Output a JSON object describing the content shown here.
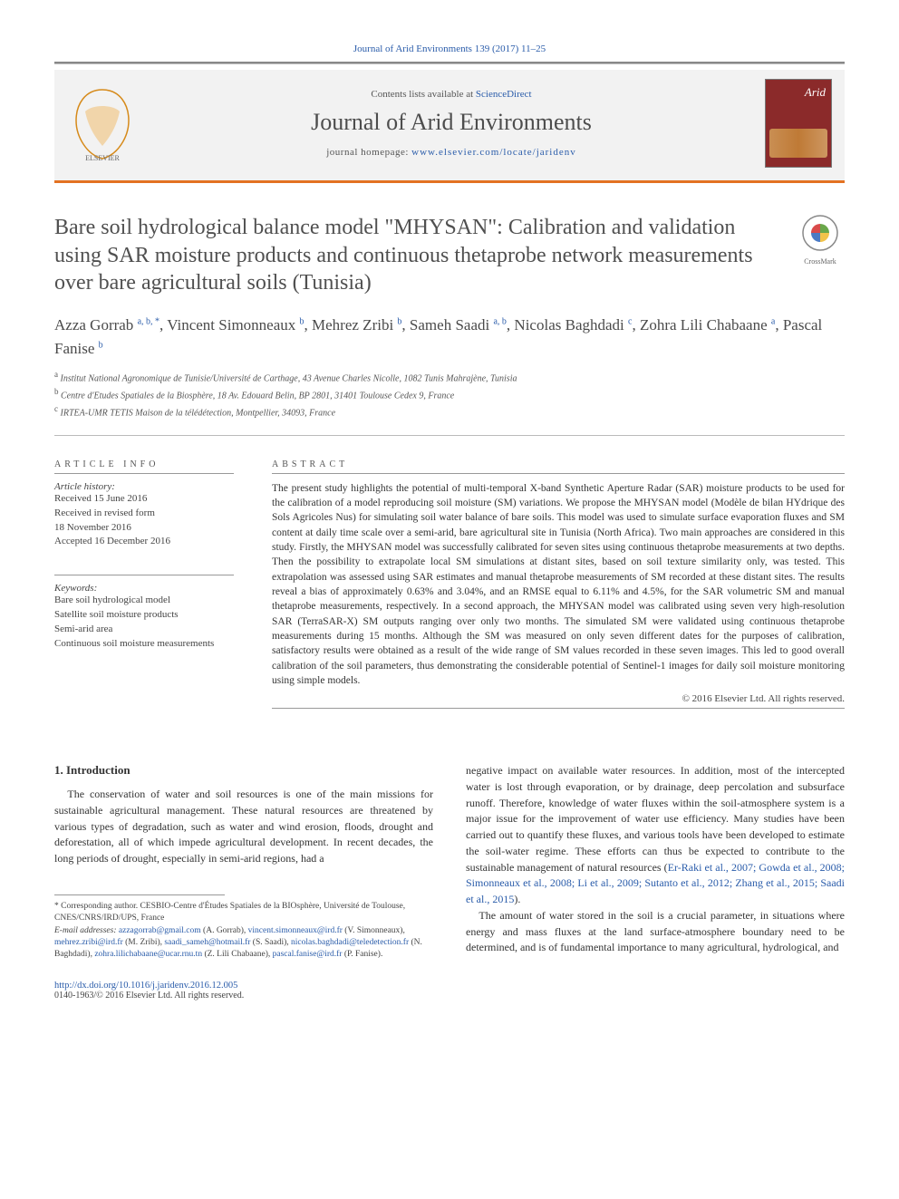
{
  "citation": "Journal of Arid Environments 139 (2017) 11–25",
  "header": {
    "contents_prefix": "Contents lists available at ",
    "contents_link": "ScienceDirect",
    "journal_name": "Journal of Arid Environments",
    "homepage_prefix": "journal homepage: ",
    "homepage_url": "www.elsevier.com/locate/jaridenv",
    "cover_title": "Arid"
  },
  "crossmark_label": "CrossMark",
  "title": "Bare soil hydrological balance model \"MHYSAN\": Calibration and validation using SAR moisture products and continuous thetaprobe network measurements over bare agricultural soils (Tunisia)",
  "authors": [
    {
      "name": "Azza Gorrab",
      "aff": "a, b, *"
    },
    {
      "name": "Vincent Simonneaux",
      "aff": "b"
    },
    {
      "name": "Mehrez Zribi",
      "aff": "b"
    },
    {
      "name": "Sameh Saadi",
      "aff": "a, b"
    },
    {
      "name": "Nicolas Baghdadi",
      "aff": "c"
    },
    {
      "name": "Zohra Lili Chabaane",
      "aff": "a"
    },
    {
      "name": "Pascal Fanise",
      "aff": "b"
    }
  ],
  "affiliations": [
    {
      "key": "a",
      "text": "Institut National Agronomique de Tunisie/Université de Carthage, 43 Avenue Charles Nicolle, 1082 Tunis Mahrajène, Tunisia"
    },
    {
      "key": "b",
      "text": "Centre d'Etudes Spatiales de la Biosphère, 18 Av. Edouard Belin, BP 2801, 31401 Toulouse Cedex 9, France"
    },
    {
      "key": "c",
      "text": "IRTEA-UMR TETIS Maison de la télédétection, Montpellier, 34093, France"
    }
  ],
  "info": {
    "header": "ARTICLE INFO",
    "history_label": "Article history:",
    "received": "Received 15 June 2016",
    "revised": "Received in revised form\n18 November 2016",
    "accepted": "Accepted 16 December 2016",
    "keywords_label": "Keywords:",
    "keywords": [
      "Bare soil hydrological model",
      "Satellite soil moisture products",
      "Semi-arid area",
      "Continuous soil moisture measurements"
    ]
  },
  "abstract": {
    "header": "ABSTRACT",
    "text": "The present study highlights the potential of multi-temporal X-band Synthetic Aperture Radar (SAR) moisture products to be used for the calibration of a model reproducing soil moisture (SM) variations. We propose the MHYSAN model (Modèle de bilan HYdrique des Sols Agricoles Nus) for simulating soil water balance of bare soils. This model was used to simulate surface evaporation fluxes and SM content at daily time scale over a semi-arid, bare agricultural site in Tunisia (North Africa). Two main approaches are considered in this study. Firstly, the MHYSAN model was successfully calibrated for seven sites using continuous thetaprobe measurements at two depths. Then the possibility to extrapolate local SM simulations at distant sites, based on soil texture similarity only, was tested. This extrapolation was assessed using SAR estimates and manual thetaprobe measurements of SM recorded at these distant sites. The results reveal a bias of approximately 0.63% and 3.04%, and an RMSE equal to 6.11% and 4.5%, for the SAR volumetric SM and manual thetaprobe measurements, respectively. In a second approach, the MHYSAN model was calibrated using seven very high-resolution SAR (TerraSAR-X) SM outputs ranging over only two months. The simulated SM were validated using continuous thetaprobe measurements during 15 months. Although the SM was measured on only seven different dates for the purposes of calibration, satisfactory results were obtained as a result of the wide range of SM values recorded in these seven images. This led to good overall calibration of the soil parameters, thus demonstrating the considerable potential of Sentinel-1 images for daily soil moisture monitoring using simple models.",
    "copyright": "© 2016 Elsevier Ltd. All rights reserved."
  },
  "section1": {
    "head": "1. Introduction",
    "p1": "The conservation of water and soil resources is one of the main missions for sustainable agricultural management. These natural resources are threatened by various types of degradation, such as water and wind erosion, floods, drought and deforestation, all of which impede agricultural development. In recent decades, the long periods of drought, especially in semi-arid regions, had a",
    "p2a": "negative impact on available water resources. In addition, most of the intercepted water is lost through evaporation, or by drainage, deep percolation and subsurface runoff. Therefore, knowledge of water fluxes within the soil-atmosphere system is a major issue for the improvement of water use efficiency. Many studies have been carried out to quantify these fluxes, and various tools have been developed to estimate the soil-water regime. These efforts can thus be expected to contribute to the sustainable management of natural resources (",
    "p2_refs": "Er-Raki et al., 2007; Gowda et al., 2008; Simonneaux et al., 2008; Li et al., 2009; Sutanto et al., 2012; Zhang et al., 2015; Saadi et al., 2015",
    "p2b": ").",
    "p3": "The amount of water stored in the soil is a crucial parameter, in situations where energy and mass fluxes at the land surface-atmosphere boundary need to be determined, and is of fundamental importance to many agricultural, hydrological, and"
  },
  "footnote": {
    "corr_label": "* Corresponding author. CESBIO-Centre d'Études Spatiales de la BIOsphère, Université de Toulouse, CNES/CNRS/IRD/UPS, France",
    "email_label": "E-mail addresses:",
    "emails": [
      {
        "addr": "azzagorrab@gmail.com",
        "who": "(A. Gorrab),"
      },
      {
        "addr": "vincent.simonneaux@ird.fr",
        "who": "(V. Simonneaux),"
      },
      {
        "addr": "mehrez.zribi@ird.fr",
        "who": "(M. Zribi),"
      },
      {
        "addr": "saadi_sameh@hotmail.fr",
        "who": "(S. Saadi),"
      },
      {
        "addr": "nicolas.baghdadi@teledetection.fr",
        "who": "(N. Baghdadi),"
      },
      {
        "addr": "zohra.lilichabaane@ucar.rnu.tn",
        "who": "(Z. Lili Chabaane),"
      },
      {
        "addr": "pascal.fanise@ird.fr",
        "who": "(P. Fanise)."
      }
    ]
  },
  "bottom": {
    "doi": "http://dx.doi.org/10.1016/j.jaridenv.2016.12.005",
    "issn_line": "0140-1963/© 2016 Elsevier Ltd. All rights reserved."
  },
  "colors": {
    "link": "#2a5caa",
    "orange": "#e37222",
    "cover_bg": "#8b2a2a"
  }
}
